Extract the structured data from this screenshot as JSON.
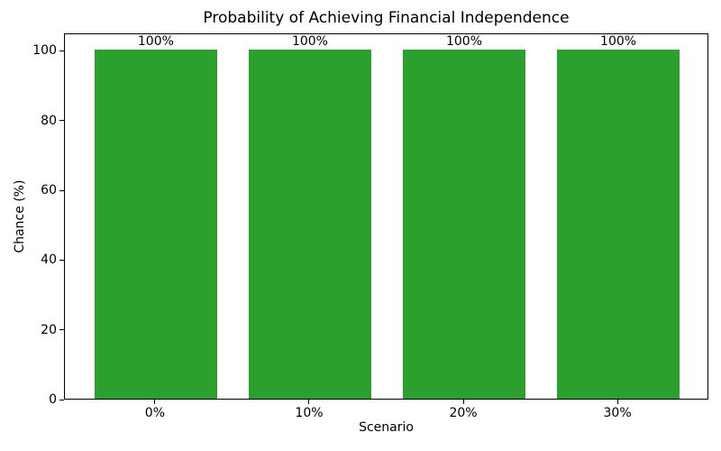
{
  "chart_data": {
    "type": "bar",
    "title": "Probability of Achieving Financial Independence",
    "xlabel": "Scenario",
    "ylabel": "Chance (%)",
    "categories": [
      "0%",
      "10%",
      "20%",
      "30%"
    ],
    "values": [
      100,
      100,
      100,
      100
    ],
    "bar_labels": [
      "100%",
      "100%",
      "100%",
      "100%"
    ],
    "yticks": [
      0,
      20,
      40,
      60,
      80,
      100
    ],
    "ylim": [
      0,
      105
    ],
    "grid": false,
    "legend": "none",
    "colors": {
      "bar": "#2ca02c",
      "text": "#000000",
      "spine": "#000000",
      "background": "#ffffff"
    }
  }
}
